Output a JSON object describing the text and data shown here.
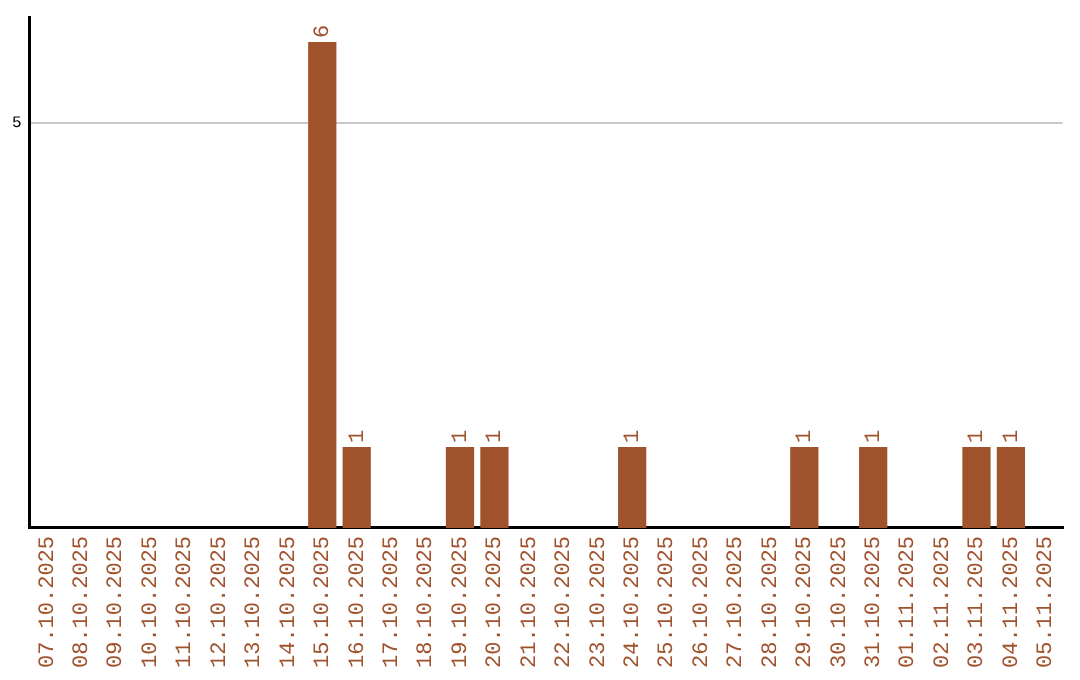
{
  "chart_data": {
    "type": "bar",
    "categories": [
      "07.10.2025",
      "08.10.2025",
      "09.10.2025",
      "10.10.2025",
      "11.10.2025",
      "12.10.2025",
      "13.10.2025",
      "14.10.2025",
      "15.10.2025",
      "16.10.2025",
      "17.10.2025",
      "18.10.2025",
      "19.10.2025",
      "20.10.2025",
      "21.10.2025",
      "22.10.2025",
      "23.10.2025",
      "24.10.2025",
      "25.10.2025",
      "26.10.2025",
      "27.10.2025",
      "28.10.2025",
      "29.10.2025",
      "30.10.2025",
      "31.10.2025",
      "01.11.2025",
      "02.11.2025",
      "03.11.2025",
      "04.11.2025",
      "05.11.2025"
    ],
    "values": [
      0,
      0,
      0,
      0,
      0,
      0,
      0,
      0,
      6,
      1,
      0,
      0,
      1,
      1,
      0,
      0,
      0,
      1,
      0,
      0,
      0,
      0,
      1,
      0,
      1,
      0,
      0,
      1,
      1,
      0
    ],
    "value_labels": [
      null,
      null,
      null,
      null,
      null,
      null,
      null,
      null,
      "6",
      "1",
      null,
      null,
      "1",
      "1",
      null,
      null,
      null,
      "1",
      null,
      null,
      null,
      null,
      "1",
      null,
      "1",
      null,
      null,
      "1",
      "1",
      null
    ],
    "color": "#a0522d",
    "ylim": [
      0,
      6.3
    ],
    "yticks": [
      5
    ],
    "grid": "y",
    "legend": false
  }
}
